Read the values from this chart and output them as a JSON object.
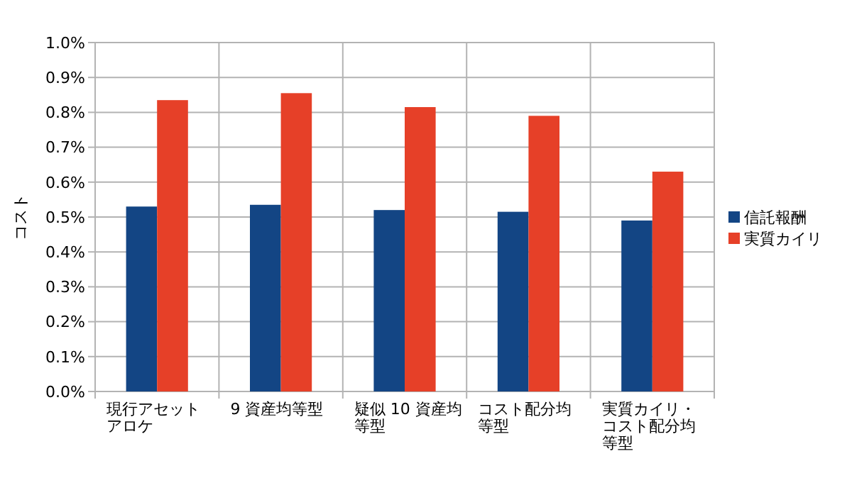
{
  "chart_data": {
    "type": "bar",
    "ylabel": "コスト",
    "categories": [
      "現行アセットアロケ",
      "9 資産均等型",
      "疑似 10 資産均等型",
      "コスト配分均等型",
      "実質カイリ・コスト配分均等型"
    ],
    "series": [
      {
        "name": "信託報酬",
        "color": "#134584",
        "values": [
          0.53,
          0.535,
          0.52,
          0.515,
          0.49
        ]
      },
      {
        "name": "実質カイリ",
        "color": "#e64028",
        "values": [
          0.835,
          0.855,
          0.815,
          0.79,
          0.63
        ]
      }
    ],
    "ylim": [
      0,
      1
    ],
    "yticks": [
      {
        "value": 0,
        "label": "0.0%"
      },
      {
        "value": 0.1,
        "label": "0.1%"
      },
      {
        "value": 0.2,
        "label": "0.2%"
      },
      {
        "value": 0.3,
        "label": "0.3%"
      },
      {
        "value": 0.4,
        "label": "0.4%"
      },
      {
        "value": 0.5,
        "label": "0.5%"
      },
      {
        "value": 0.6,
        "label": "0.6%"
      },
      {
        "value": 0.7,
        "label": "0.7%"
      },
      {
        "value": 0.8,
        "label": "0.8%"
      },
      {
        "value": 0.9,
        "label": "0.9%"
      },
      {
        "value": 1,
        "label": "1.0%"
      }
    ],
    "grid": true,
    "legend": "right"
  }
}
